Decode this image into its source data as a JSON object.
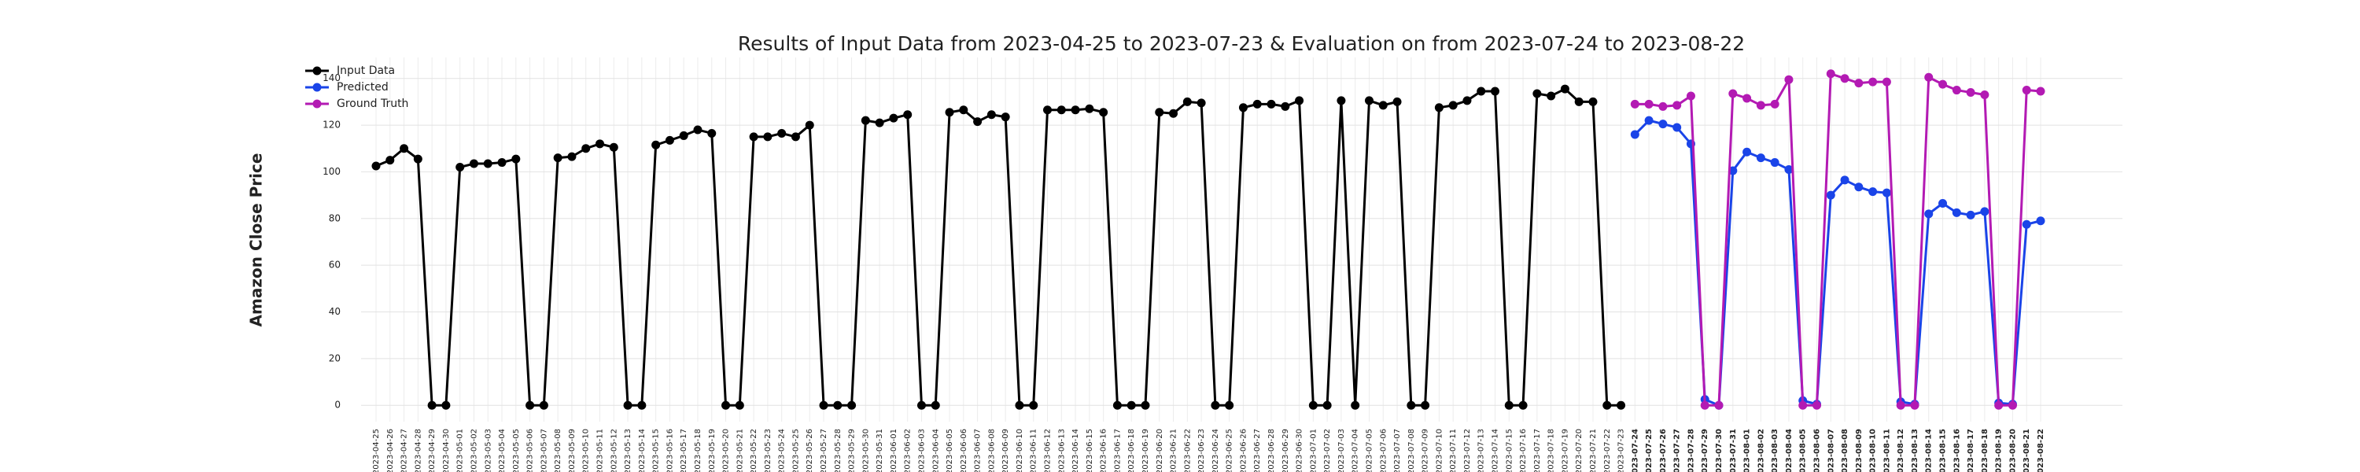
{
  "chart_data": {
    "type": "line",
    "title": "Results of Input Data from 2023-04-25 to 2023-07-23 & Evaluation on from 2023-07-24 to 2023-08-22",
    "ylabel": "Amazon Close Price",
    "categories": [
      "2023-04-25",
      "2023-04-26",
      "2023-04-27",
      "2023-04-28",
      "2023-04-29",
      "2023-04-30",
      "2023-05-01",
      "2023-05-02",
      "2023-05-03",
      "2023-05-04",
      "2023-05-05",
      "2023-05-06",
      "2023-05-07",
      "2023-05-08",
      "2023-05-09",
      "2023-05-10",
      "2023-05-11",
      "2023-05-12",
      "2023-05-13",
      "2023-05-14",
      "2023-05-15",
      "2023-05-16",
      "2023-05-17",
      "2023-05-18",
      "2023-05-19",
      "2023-05-20",
      "2023-05-21",
      "2023-05-22",
      "2023-05-23",
      "2023-05-24",
      "2023-05-25",
      "2023-05-26",
      "2023-05-27",
      "2023-05-28",
      "2023-05-29",
      "2023-05-30",
      "2023-05-31",
      "2023-06-01",
      "2023-06-02",
      "2023-06-03",
      "2023-06-04",
      "2023-06-05",
      "2023-06-06",
      "2023-06-07",
      "2023-06-08",
      "2023-06-09",
      "2023-06-10",
      "2023-06-11",
      "2023-06-12",
      "2023-06-13",
      "2023-06-14",
      "2023-06-15",
      "2023-06-16",
      "2023-06-17",
      "2023-06-18",
      "2023-06-19",
      "2023-06-20",
      "2023-06-21",
      "2023-06-22",
      "2023-06-23",
      "2023-06-24",
      "2023-06-25",
      "2023-06-26",
      "2023-06-27",
      "2023-06-28",
      "2023-06-29",
      "2023-06-30",
      "2023-07-01",
      "2023-07-02",
      "2023-07-03",
      "2023-07-04",
      "2023-07-05",
      "2023-07-06",
      "2023-07-07",
      "2023-07-08",
      "2023-07-09",
      "2023-07-10",
      "2023-07-11",
      "2023-07-12",
      "2023-07-13",
      "2023-07-14",
      "2023-07-15",
      "2023-07-16",
      "2023-07-17",
      "2023-07-18",
      "2023-07-19",
      "2023-07-20",
      "2023-07-21",
      "2023-07-22",
      "2023-07-23",
      "2023-07-24",
      "2023-07-25",
      "2023-07-26",
      "2023-07-27",
      "2023-07-28",
      "2023-07-29",
      "2023-07-30",
      "2023-07-31",
      "2023-08-01",
      "2023-08-02",
      "2023-08-03",
      "2023-08-04",
      "2023-08-05",
      "2023-08-06",
      "2023-08-07",
      "2023-08-08",
      "2023-08-09",
      "2023-08-10",
      "2023-08-11",
      "2023-08-12",
      "2023-08-13",
      "2023-08-14",
      "2023-08-15",
      "2023-08-16",
      "2023-08-17",
      "2023-08-18",
      "2023-08-19",
      "2023-08-20",
      "2023-08-21",
      "2023-08-22"
    ],
    "series": [
      {
        "name": "Input Data",
        "color": "#000000",
        "values": [
          102.5,
          105,
          110,
          105.5,
          0,
          0,
          102,
          103.5,
          103.5,
          104,
          105.5,
          0,
          0,
          106,
          106.5,
          110,
          112,
          110.5,
          0,
          0,
          111.5,
          113.5,
          115.5,
          118,
          116.5,
          0,
          0,
          115,
          115,
          116.5,
          115,
          120,
          0,
          0,
          0,
          122,
          121,
          123,
          124.5,
          0,
          0,
          125.5,
          126.5,
          121.5,
          124.5,
          123.5,
          0,
          0,
          126.5,
          126.5,
          126.5,
          127,
          125.5,
          0,
          0,
          0,
          125.5,
          125,
          130,
          129.5,
          0,
          0,
          127.5,
          129,
          129,
          128,
          130.5,
          0,
          0,
          130.5,
          0,
          130.5,
          128.5,
          130,
          0,
          0,
          127.5,
          128.5,
          130.5,
          134.5,
          134.5,
          0,
          0,
          133.5,
          132.5,
          135.5,
          130,
          130,
          0,
          0,
          null,
          null,
          null,
          null,
          null,
          null,
          null,
          null,
          null,
          null,
          null,
          null,
          null,
          null,
          null,
          null,
          null,
          null,
          null,
          null,
          null,
          null,
          null,
          null,
          null,
          null,
          null,
          null,
          null,
          null
        ]
      },
      {
        "name": "Predicted",
        "color": "#1a44e8",
        "values": [
          null,
          null,
          null,
          null,
          null,
          null,
          null,
          null,
          null,
          null,
          null,
          null,
          null,
          null,
          null,
          null,
          null,
          null,
          null,
          null,
          null,
          null,
          null,
          null,
          null,
          null,
          null,
          null,
          null,
          null,
          null,
          null,
          null,
          null,
          null,
          null,
          null,
          null,
          null,
          null,
          null,
          null,
          null,
          null,
          null,
          null,
          null,
          null,
          null,
          null,
          null,
          null,
          null,
          null,
          null,
          null,
          null,
          null,
          null,
          null,
          null,
          null,
          null,
          null,
          null,
          null,
          null,
          null,
          null,
          null,
          null,
          null,
          null,
          null,
          null,
          null,
          null,
          null,
          null,
          null,
          null,
          null,
          null,
          null,
          null,
          null,
          null,
          null,
          null,
          null,
          116,
          122,
          120.5,
          119,
          112,
          2.5,
          0,
          100.5,
          108.5,
          106,
          104,
          101,
          2,
          0.5,
          90,
          96.5,
          93.5,
          91.5,
          91,
          1.5,
          0.5,
          82,
          86.5,
          82.5,
          81.5,
          83,
          1,
          0.5,
          77.5,
          79
        ]
      },
      {
        "name": "Ground Truth",
        "color": "#b31ab3",
        "values": [
          null,
          null,
          null,
          null,
          null,
          null,
          null,
          null,
          null,
          null,
          null,
          null,
          null,
          null,
          null,
          null,
          null,
          null,
          null,
          null,
          null,
          null,
          null,
          null,
          null,
          null,
          null,
          null,
          null,
          null,
          null,
          null,
          null,
          null,
          null,
          null,
          null,
          null,
          null,
          null,
          null,
          null,
          null,
          null,
          null,
          null,
          null,
          null,
          null,
          null,
          null,
          null,
          null,
          null,
          null,
          null,
          null,
          null,
          null,
          null,
          null,
          null,
          null,
          null,
          null,
          null,
          null,
          null,
          null,
          null,
          null,
          null,
          null,
          null,
          null,
          null,
          null,
          null,
          null,
          null,
          null,
          null,
          null,
          null,
          null,
          null,
          null,
          null,
          null,
          null,
          129,
          129,
          128,
          128.5,
          132.5,
          0,
          0,
          133.5,
          131.5,
          128.5,
          129,
          139.5,
          0,
          0,
          142,
          140,
          138,
          138.5,
          138.5,
          0,
          0,
          140.5,
          137.5,
          135,
          134,
          133,
          0,
          0,
          135,
          134.5
        ]
      }
    ],
    "ylim": [
      -7,
      149
    ],
    "yticks": [
      0,
      20,
      40,
      60,
      80,
      100,
      120,
      140
    ],
    "grid": true,
    "legend": "upper left"
  }
}
